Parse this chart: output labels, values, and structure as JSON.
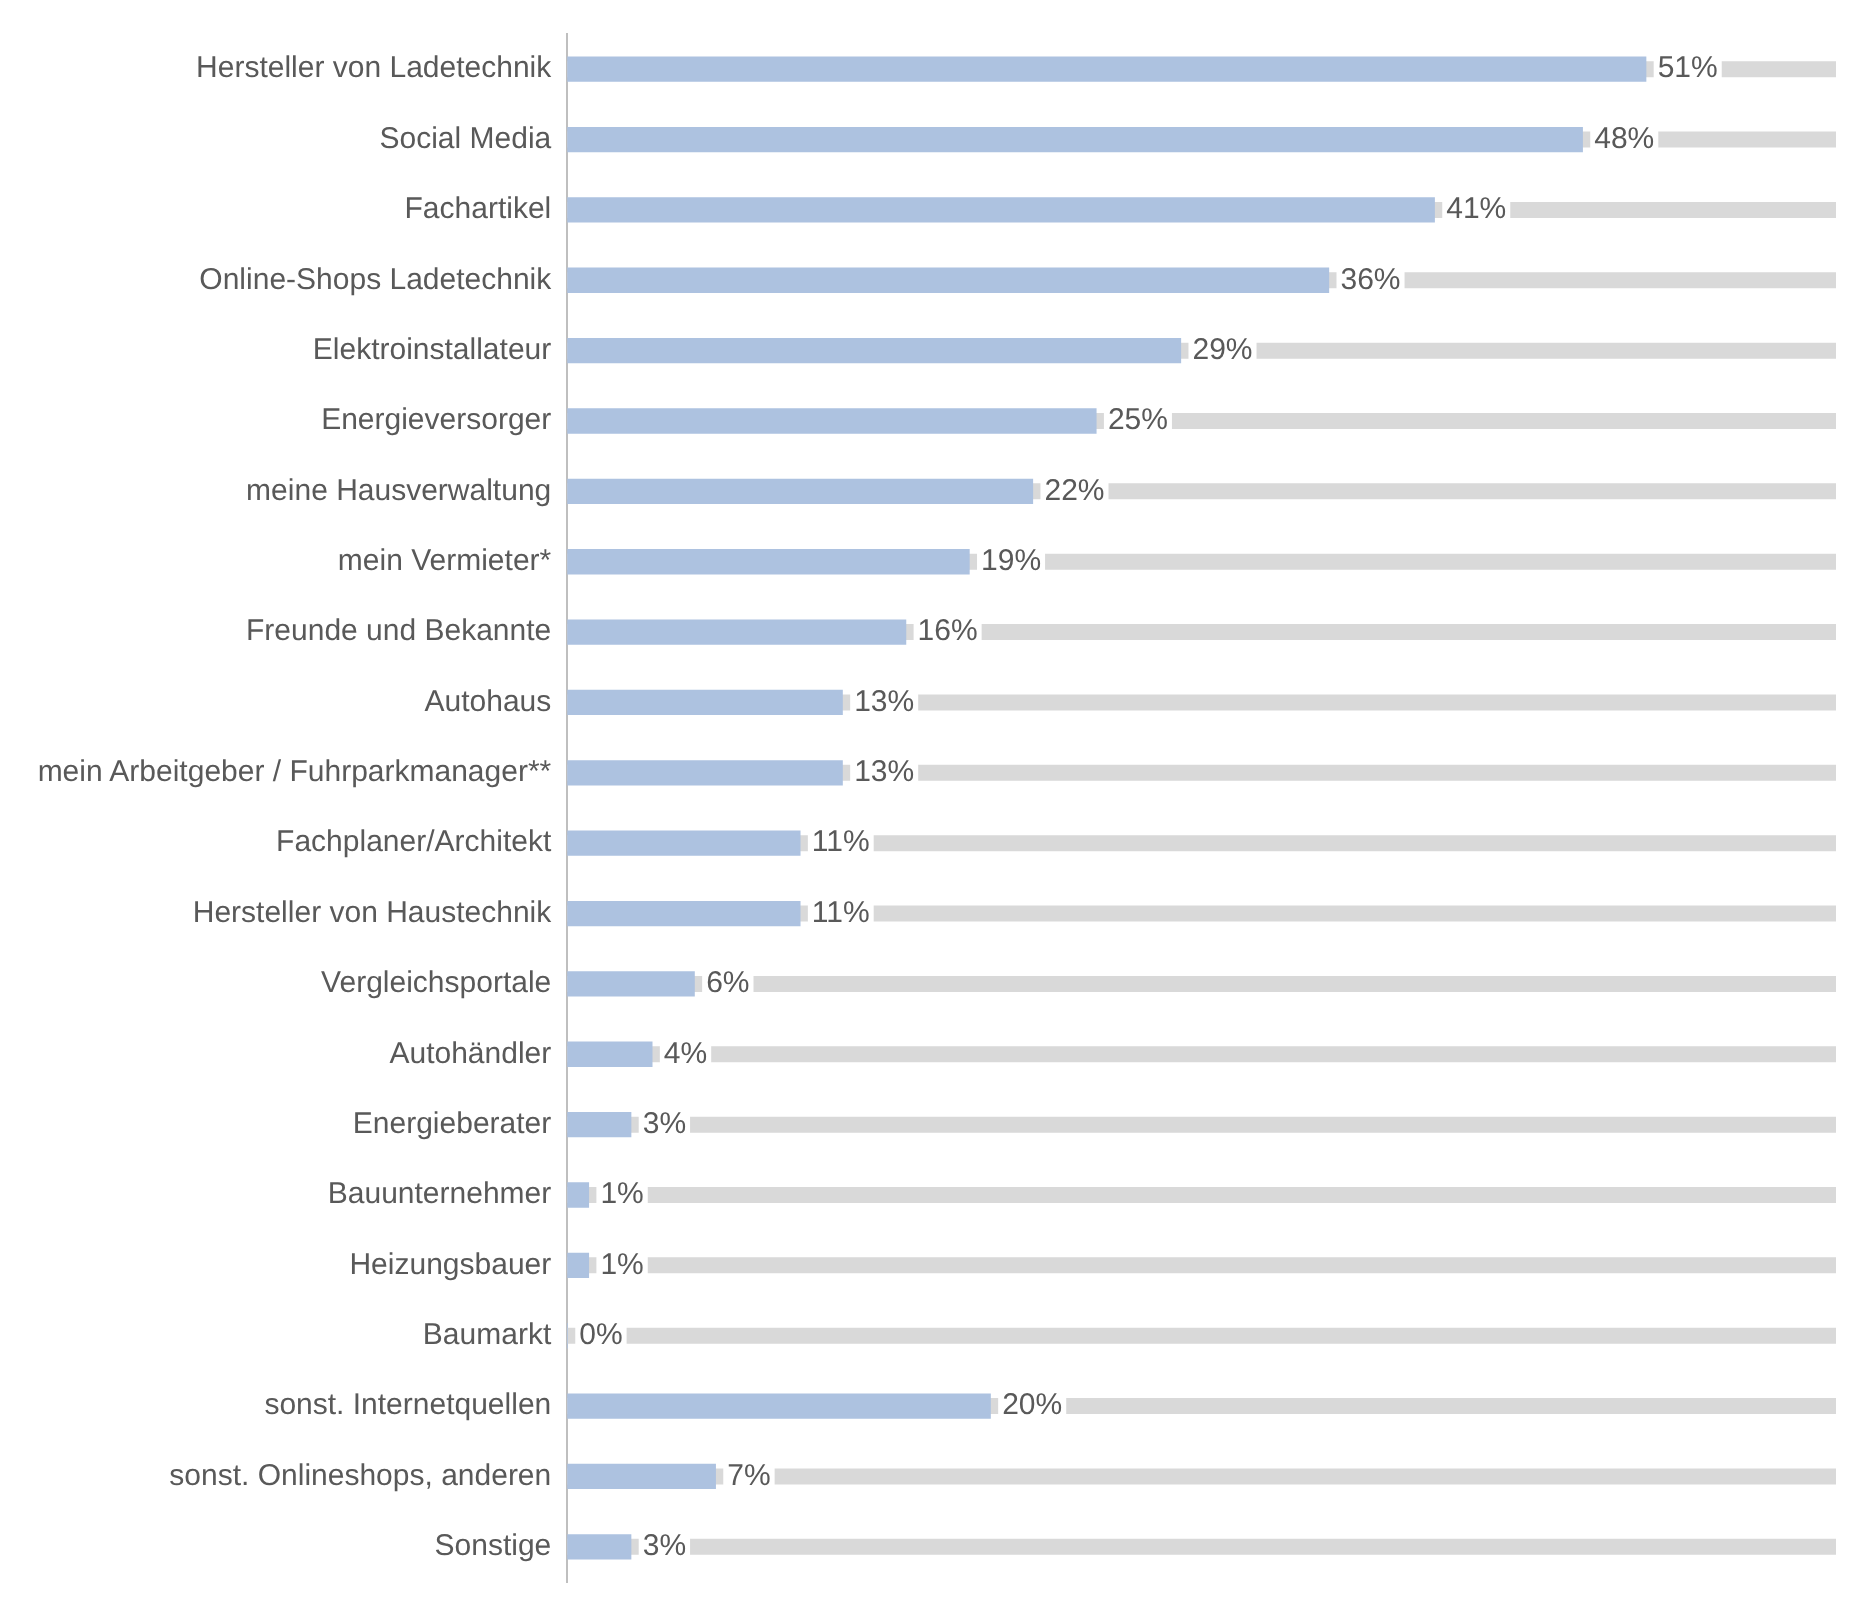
{
  "chart_data": {
    "type": "bar",
    "orientation": "horizontal",
    "categories": [
      "Hersteller von Ladetechnik",
      "Social Media",
      "Fachartikel",
      "Online-Shops Ladetechnik",
      "Elektroinstallateur",
      "Energieversorger",
      "meine Hausverwaltung",
      "mein Vermieter*",
      "Freunde und Bekannte",
      "Autohaus",
      "mein Arbeitgeber / Fuhrparkmanager**",
      "Fachplaner/Architekt",
      "Hersteller von Haustechnik",
      "Vergleichsportale",
      "Autohändler",
      "Energieberater",
      "Bauunternehmer",
      "Heizungsbauer",
      "Baumarkt",
      "sonst. Internetquellen",
      "sonst. Onlineshops, anderen",
      "Sonstige"
    ],
    "values": [
      51,
      48,
      41,
      36,
      29,
      25,
      22,
      19,
      16,
      13,
      13,
      11,
      11,
      6,
      4,
      3,
      1,
      1,
      0,
      20,
      7,
      3
    ],
    "value_labels": [
      "51%",
      "48%",
      "41%",
      "36%",
      "29%",
      "25%",
      "22%",
      "19%",
      "16%",
      "13%",
      "13%",
      "11%",
      "11%",
      "6%",
      "4%",
      "3%",
      "1%",
      "1%",
      "0%",
      "20%",
      "7%",
      "3%"
    ],
    "color": "#adc2e0",
    "tick_labels": "y"
  }
}
